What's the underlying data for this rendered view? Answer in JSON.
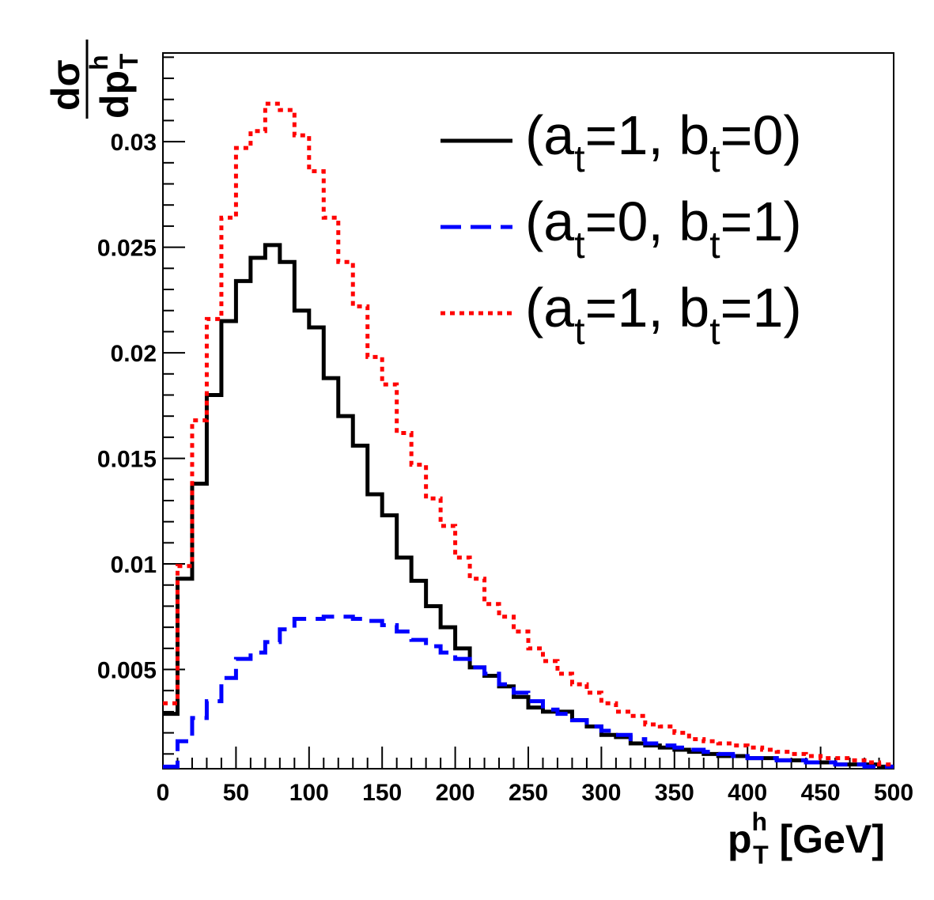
{
  "chart_data": {
    "type": "line",
    "style": "step-histogram",
    "title": "",
    "xlabel": {
      "main": "p",
      "sup": "h",
      "sub": "T",
      "unit": " [GeV]"
    },
    "ylabel": {
      "numerator": "dσ",
      "denominator_main": "dp",
      "denominator_sup": "h",
      "denominator_sub": "T"
    },
    "xlim": [
      0,
      500
    ],
    "ylim": [
      0.0003,
      0.0342
    ],
    "x_ticks": [
      "0",
      "50",
      "100",
      "150",
      "200",
      "250",
      "300",
      "350",
      "400",
      "450",
      "500"
    ],
    "y_ticks": [
      {
        "value": 0.005,
        "label": "0.005"
      },
      {
        "value": 0.01,
        "label": "0.01"
      },
      {
        "value": 0.015,
        "label": "0.015"
      },
      {
        "value": 0.02,
        "label": "0.02"
      },
      {
        "value": 0.025,
        "label": "0.025"
      },
      {
        "value": 0.03,
        "label": "0.03"
      }
    ],
    "grid": false,
    "legend_position": "top-right",
    "bin_width": 10,
    "bin_edges_start": 0,
    "series": [
      {
        "name": "at=1, bt=0",
        "legend": {
          "open": "(a",
          "sub1": "t",
          "mid": "=1, b",
          "sub2": "t",
          "close": "=0)"
        },
        "color": "#000000",
        "dash": "solid",
        "values": [
          0.0029,
          0.0093,
          0.0138,
          0.018,
          0.0215,
          0.0234,
          0.0245,
          0.0251,
          0.0243,
          0.022,
          0.0212,
          0.0188,
          0.017,
          0.0156,
          0.0133,
          0.0123,
          0.0103,
          0.0092,
          0.008,
          0.007,
          0.006,
          0.0051,
          0.0047,
          0.0042,
          0.0037,
          0.0032,
          0.003,
          0.003,
          0.0026,
          0.0023,
          0.0019,
          0.0018,
          0.0015,
          0.0014,
          0.0013,
          0.0012,
          0.0011,
          0.001,
          0.0009,
          0.0009,
          0.0008,
          0.0008,
          0.0007,
          0.0007,
          0.0006,
          0.0006,
          0.0005,
          0.0005,
          0.0005,
          0.0004
        ]
      },
      {
        "name": "at=0, bt=1",
        "legend": {
          "open": "(a",
          "sub1": "t",
          "mid": "=0, b",
          "sub2": "t",
          "close": "=1)"
        },
        "color": "#0000ff",
        "dash": "long-dash",
        "values": [
          0.0004,
          0.0016,
          0.0027,
          0.0035,
          0.0046,
          0.0055,
          0.0058,
          0.0063,
          0.0069,
          0.0074,
          0.0074,
          0.0075,
          0.0075,
          0.0074,
          0.0073,
          0.0071,
          0.0068,
          0.0064,
          0.0061,
          0.0058,
          0.0055,
          0.0051,
          0.0048,
          0.0043,
          0.0039,
          0.0035,
          0.0031,
          0.0029,
          0.0026,
          0.0023,
          0.0021,
          0.0019,
          0.0017,
          0.0015,
          0.0014,
          0.0013,
          0.0012,
          0.0011,
          0.001,
          0.0009,
          0.0008,
          0.0008,
          0.0007,
          0.0007,
          0.0006,
          0.0006,
          0.0005,
          0.0005,
          0.0004,
          0.0004
        ]
      },
      {
        "name": "at=1, bt=1",
        "legend": {
          "open": "(a",
          "sub1": "t",
          "mid": "=1, b",
          "sub2": "t",
          "close": "=1)"
        },
        "color": "#ff0000",
        "dash": "dotted",
        "values": [
          0.0034,
          0.0099,
          0.0168,
          0.0216,
          0.0264,
          0.0297,
          0.0305,
          0.0318,
          0.0315,
          0.0303,
          0.0286,
          0.0264,
          0.0243,
          0.0222,
          0.0198,
          0.0185,
          0.0162,
          0.0147,
          0.0131,
          0.0118,
          0.0103,
          0.0093,
          0.0081,
          0.0075,
          0.0068,
          0.006,
          0.0054,
          0.0048,
          0.0043,
          0.0039,
          0.0034,
          0.003,
          0.0028,
          0.0024,
          0.0023,
          0.002,
          0.0017,
          0.0016,
          0.0015,
          0.0014,
          0.0013,
          0.0012,
          0.0011,
          0.001,
          0.0009,
          0.0008,
          0.0008,
          0.0007,
          0.0006,
          0.0005
        ]
      }
    ]
  }
}
